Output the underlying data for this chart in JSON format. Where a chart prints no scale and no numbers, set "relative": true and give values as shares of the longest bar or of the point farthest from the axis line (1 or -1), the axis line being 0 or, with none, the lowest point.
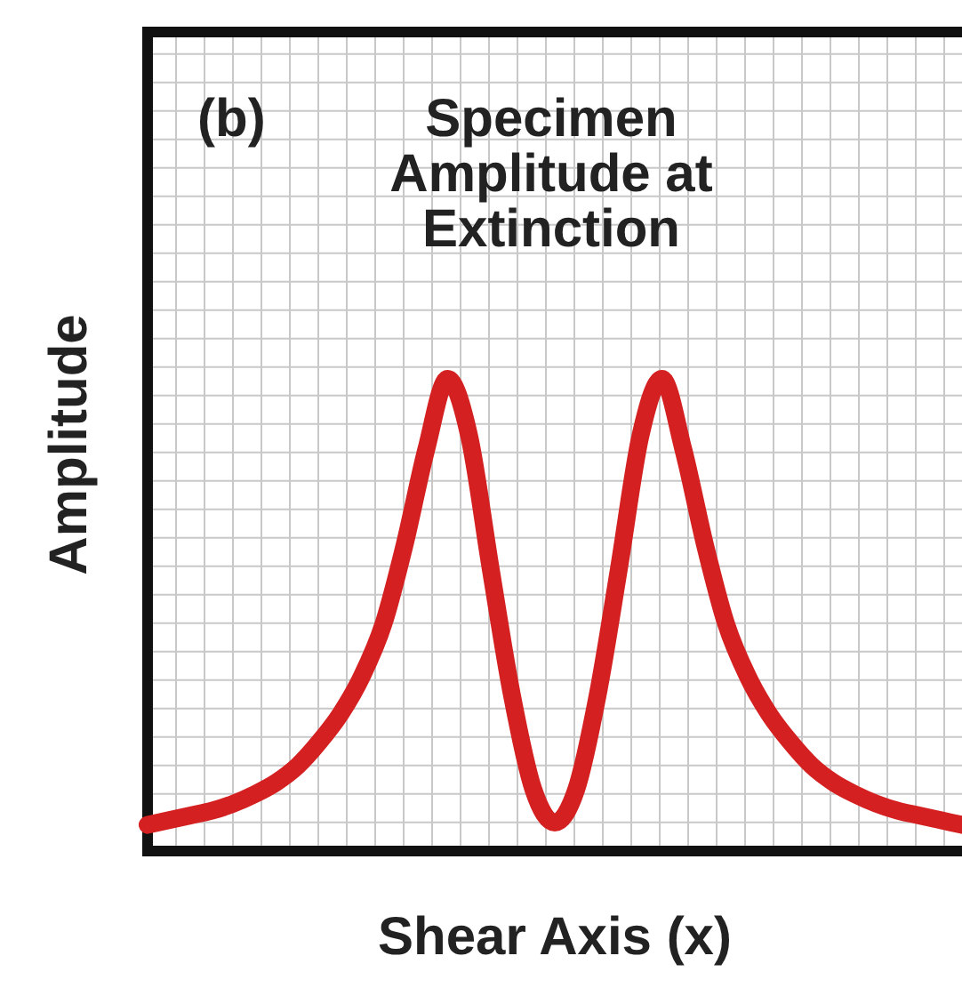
{
  "chart_data": {
    "type": "line",
    "title": "Specimen Amplitude at Extinction",
    "xlabel": "Shear Axis (x)",
    "ylabel": "Amplitude",
    "annotations": [
      "(b)"
    ],
    "relative": true,
    "grid": true,
    "marker": "none",
    "categories": [
      null,
      null,
      null,
      null,
      null,
      null,
      null,
      null,
      null,
      null,
      null,
      null,
      null,
      null,
      null,
      null,
      null,
      null,
      null,
      null,
      null,
      null,
      null,
      null,
      null,
      null,
      null,
      null,
      null,
      null,
      null,
      null,
      null,
      null,
      null,
      null,
      null,
      null,
      null
    ],
    "series": [
      {
        "color": "#d42020",
        "values": [
          0.055,
          0.065,
          0.075,
          0.085,
          0.1,
          0.12,
          0.145,
          0.18,
          0.23,
          0.29,
          0.37,
          0.48,
          0.65,
          0.85,
          1,
          0.88,
          0.6,
          0.33,
          0.13,
          0.06,
          0.13,
          0.33,
          0.6,
          0.88,
          1,
          0.85,
          0.65,
          0.48,
          0.37,
          0.29,
          0.23,
          0.18,
          0.145,
          0.12,
          0.1,
          0.085,
          0.075,
          0.065,
          0.055
        ]
      }
    ]
  }
}
